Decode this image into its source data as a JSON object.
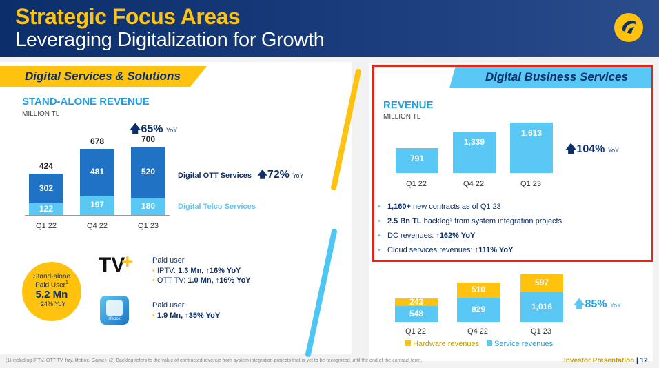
{
  "header": {
    "title": "Strategic Focus Areas",
    "subtitle": "Leveraging Digitalization for Growth",
    "logo_icon": "turkcell-logo-icon"
  },
  "left": {
    "tab": "Digital Services & Solutions",
    "chart_title": "STAND-ALONE REVENUE",
    "unit": "MILLION TL",
    "yoy": "65%",
    "yoy_label": "YoY",
    "ott_label": "Digital OTT Services",
    "ott_yoy": "72%",
    "ott_yoy_label": "YoY",
    "telco_label": "Digital Telco Services",
    "circle": {
      "line1": "Stand-alone",
      "line2": "Paid User",
      "sup": "1",
      "value": "5.2 Mn",
      "yoy": "24% YoY"
    },
    "tv": {
      "logo_text": "TV",
      "heading": "Paid user",
      "item1_prefix": "IPTV: ",
      "item1_value": "1.3 Mn, ",
      "item1_yoy": "16% YoY",
      "item2_prefix": "OTT TV: ",
      "item2_value": "1.0 Mn, ",
      "item2_yoy": "16% YoY"
    },
    "lifebox": {
      "logo_text": "lifebox",
      "heading": "Paid user",
      "item1": "1.9 Mn, ",
      "item1_yoy": "35% YoY"
    }
  },
  "right": {
    "tab": "Digital Business Services",
    "chart_title": "REVENUE",
    "unit": "MILLION TL",
    "yoy": "104%",
    "yoy_label": "YoY",
    "bullets": [
      {
        "bold": "1,160+",
        "text": " new contracts as of Q1 23"
      },
      {
        "bold": "2.5 Bn TL",
        "text": " backlog² from system integration projects"
      },
      {
        "bold": "",
        "text": "DC revenues: ",
        "bold2": "↑162% YoY"
      },
      {
        "bold": "",
        "text": "Cloud services revenues: ",
        "bold2": "↑111% YoY"
      }
    ],
    "stack_yoy": "85%",
    "stack_yoy_label": "YoY",
    "legend_hw": "Hardware revenues",
    "legend_sv": "Service revenues"
  },
  "footer": {
    "note": "(1) including IPTV, OTT TV, fizy, lifebox, Game+ (2) Backlog refers to the value of contracted revenue from system integration projects that is yet to be recognized until the end of the contract term.",
    "right": "Investor Presentation",
    "page": "12"
  },
  "colors": {
    "navy": "#0b2f6b",
    "yellow": "#ffc20e",
    "blue": "#1f72c4",
    "lightblue": "#5ac8f5",
    "red": "#e2261c"
  },
  "chart_data": [
    {
      "type": "bar",
      "title": "STAND-ALONE REVENUE",
      "ylabel": "MILLION TL",
      "categories": [
        "Q1 22",
        "Q4 22",
        "Q1 23"
      ],
      "series": [
        {
          "name": "Digital Telco Services",
          "values": [
            122,
            197,
            180
          ]
        },
        {
          "name": "Digital OTT Services",
          "values": [
            302,
            481,
            520
          ]
        }
      ],
      "totals": [
        424,
        678,
        700
      ],
      "stacked": true
    },
    {
      "type": "bar",
      "title": "REVENUE",
      "ylabel": "MILLION TL",
      "categories": [
        "Q1 22",
        "Q4 22",
        "Q1 23"
      ],
      "values": [
        791,
        1339,
        1613
      ]
    },
    {
      "type": "bar",
      "categories": [
        "Q1 22",
        "Q4 22",
        "Q1 23"
      ],
      "series": [
        {
          "name": "Service revenues",
          "values": [
            548,
            829,
            1016
          ]
        },
        {
          "name": "Hardware revenues",
          "values": [
            243,
            510,
            597
          ]
        }
      ],
      "stacked": true
    }
  ]
}
